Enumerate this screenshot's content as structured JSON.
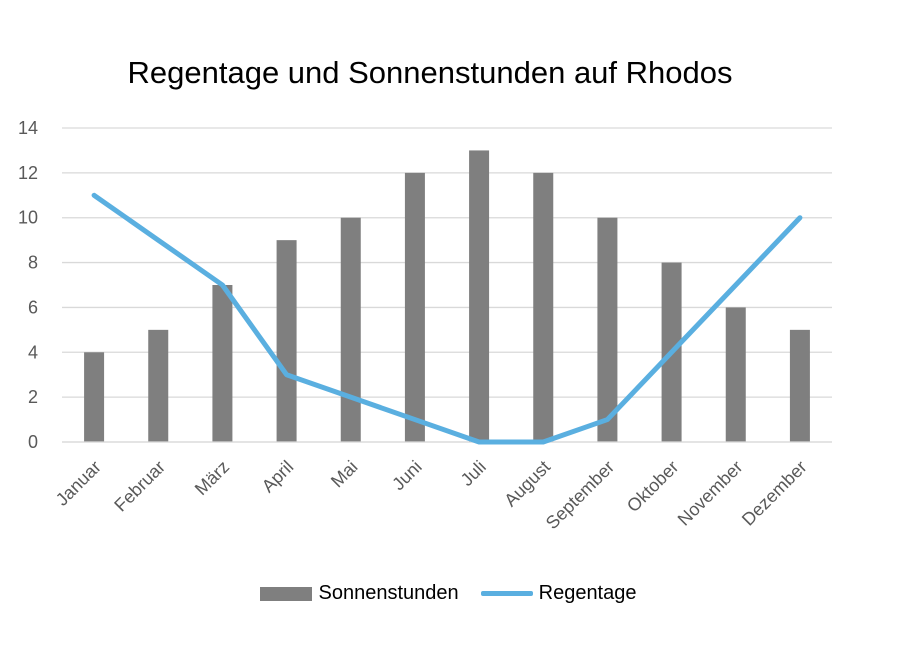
{
  "chart_data": {
    "type": "bar",
    "title": "Regentage und Sonnenstunden auf Rhodos",
    "categories": [
      "Januar",
      "Februar",
      "März",
      "April",
      "Mai",
      "Juni",
      "Juli",
      "August",
      "September",
      "Oktober",
      "November",
      "Dezember"
    ],
    "series": [
      {
        "name": "Sonnenstunden",
        "type": "bar",
        "color": "#7f7f7f",
        "values": [
          4,
          5,
          7,
          9,
          10,
          12,
          13,
          12,
          10,
          8,
          6,
          5
        ]
      },
      {
        "name": "Regentage",
        "type": "line",
        "color": "#5aafe0",
        "values": [
          11,
          9,
          7,
          3,
          2,
          1,
          0,
          0,
          1,
          4,
          7,
          10
        ]
      }
    ],
    "ylim": [
      0,
      14
    ],
    "yticks": [
      0,
      2,
      4,
      6,
      8,
      10,
      12,
      14
    ],
    "grid": true,
    "legend": "bottom"
  }
}
